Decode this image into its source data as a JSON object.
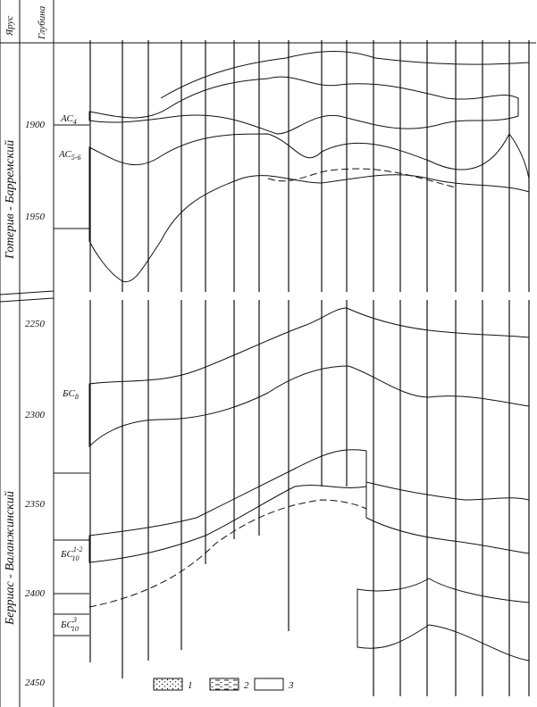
{
  "header": {
    "stage": "Ярус",
    "depth": "Глубина"
  },
  "stages": [
    "Готерив - Барремский",
    "Берриас - Валанжинский"
  ],
  "depths": [
    "1900",
    "1950",
    "2250",
    "2300",
    "2350",
    "2400",
    "2450"
  ],
  "layers": [
    {
      "base": "АС",
      "sub": "4"
    },
    {
      "base": "АС",
      "sub": "5-6"
    },
    {
      "base": "БС",
      "sub": "8"
    },
    {
      "base": "БС",
      "sub": "10",
      "sup": "1-2"
    },
    {
      "base": "БС",
      "sub": "10",
      "sup": "3"
    }
  ],
  "legend": [
    "1",
    "2",
    "3"
  ]
}
